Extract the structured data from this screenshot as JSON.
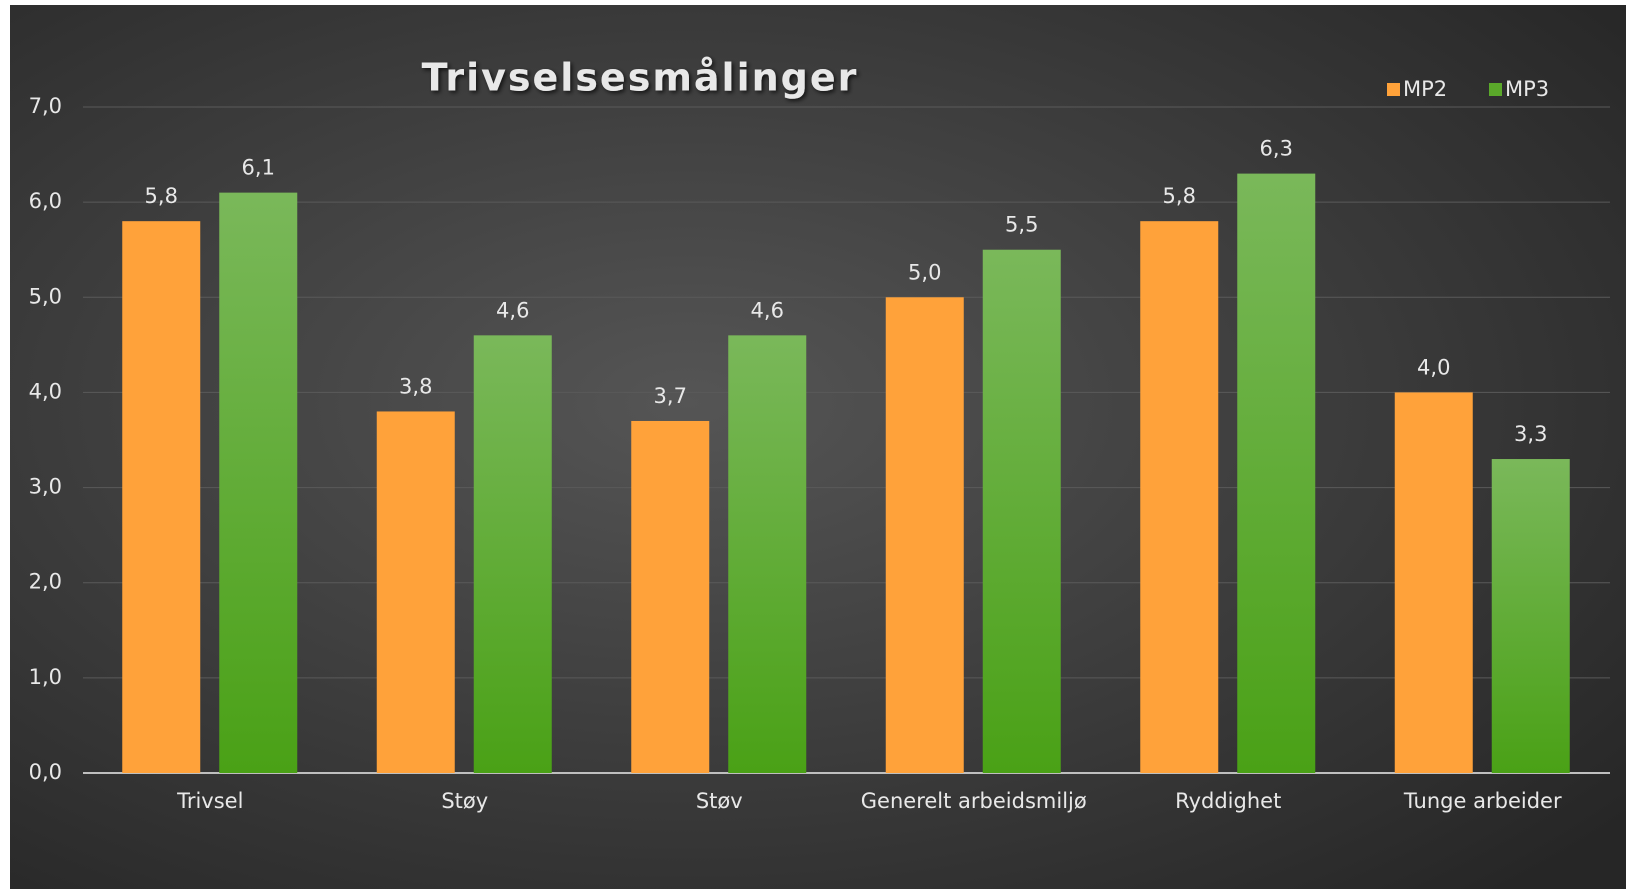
{
  "chart_data": {
    "type": "bar",
    "title": "Trivselsesmålinger",
    "categories": [
      "Trivsel",
      "Støy",
      "Støv",
      "Generelt arbeidsmiljø",
      "Ryddighet",
      "Tunge arbeider"
    ],
    "series": [
      {
        "name": "MP2",
        "color": "#ffa23a",
        "values": [
          5.8,
          3.8,
          3.7,
          5.0,
          5.8,
          4.0
        ],
        "value_labels": [
          "5,8",
          "3,8",
          "3,7",
          "5,0",
          "5,8",
          "4,0"
        ]
      },
      {
        "name": "MP3",
        "color": "#5aa82a",
        "values": [
          6.1,
          4.6,
          4.6,
          5.5,
          6.3,
          3.3
        ],
        "value_labels": [
          "6,1",
          "4,6",
          "4,6",
          "5,5",
          "6,3",
          "3,3"
        ]
      }
    ],
    "ylim": [
      0,
      7
    ],
    "yticks": [
      {
        "value": 0,
        "label": "0,0"
      },
      {
        "value": 1,
        "label": "1,0"
      },
      {
        "value": 2,
        "label": "2,0"
      },
      {
        "value": 3,
        "label": "3,0"
      },
      {
        "value": 4,
        "label": "4,0"
      },
      {
        "value": 5,
        "label": "5,0"
      },
      {
        "value": 6,
        "label": "6,0"
      },
      {
        "value": 7,
        "label": "7,0"
      }
    ],
    "grid": true,
    "legend": "top-right"
  }
}
